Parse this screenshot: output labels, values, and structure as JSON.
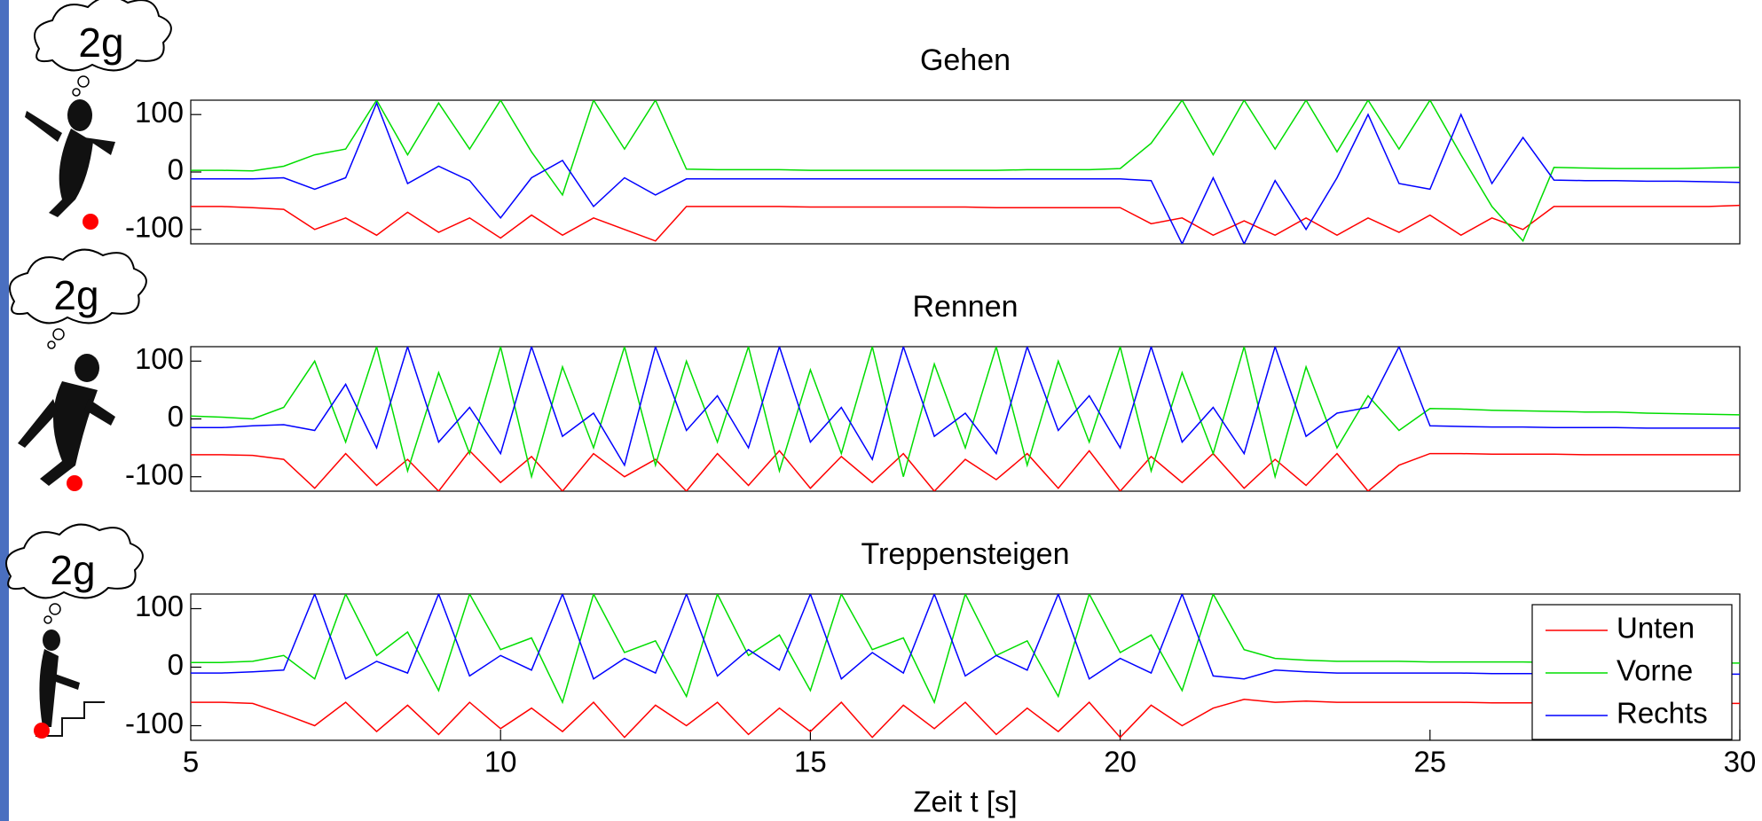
{
  "chart_data": [
    {
      "type": "line",
      "title": "Gehen",
      "annotation": "2g",
      "x": [
        5,
        5.5,
        6,
        6.5,
        7,
        7.5,
        8,
        8.5,
        9,
        9.5,
        10,
        10.5,
        11,
        11.5,
        12,
        12.5,
        13,
        13.5,
        14,
        14.5,
        15,
        15.5,
        16,
        16.5,
        17,
        17.5,
        18,
        18.5,
        19,
        19.5,
        20,
        20.5,
        21,
        21.5,
        22,
        22.5,
        23,
        23.5,
        24,
        24.5,
        25,
        25.5,
        26,
        26.5,
        27,
        27.5,
        28,
        28.5,
        29,
        29.5,
        30
      ],
      "xlim": [
        5,
        30
      ],
      "ylim": [
        -125,
        125
      ],
      "yticks": [
        -100,
        0,
        100
      ],
      "series": [
        {
          "color": "#ff0000",
          "values": [
            -60,
            -60,
            -62,
            -65,
            -100,
            -80,
            -110,
            -70,
            -105,
            -80,
            -115,
            -75,
            -110,
            -80,
            -100,
            -120,
            -60,
            -60,
            -60,
            -60,
            -61,
            -61,
            -61,
            -61,
            -61,
            -61,
            -62,
            -62,
            -62,
            -62,
            -62,
            -90,
            -80,
            -110,
            -85,
            -110,
            -80,
            -110,
            -80,
            -105,
            -75,
            -110,
            -80,
            -100,
            -60,
            -60,
            -60,
            -60,
            -60,
            -60,
            -58
          ]
        },
        {
          "color": "#00dd00",
          "values": [
            3,
            3,
            2,
            10,
            30,
            40,
            125,
            30,
            120,
            40,
            125,
            35,
            -40,
            125,
            40,
            125,
            5,
            4,
            4,
            4,
            3,
            3,
            3,
            3,
            3,
            3,
            3,
            4,
            4,
            4,
            6,
            50,
            125,
            30,
            125,
            40,
            125,
            35,
            125,
            40,
            125,
            30,
            -60,
            -120,
            8,
            7,
            6,
            6,
            6,
            7,
            8
          ]
        },
        {
          "color": "#0000ff",
          "values": [
            -12,
            -12,
            -12,
            -10,
            -30,
            -10,
            120,
            -20,
            10,
            -15,
            -80,
            -10,
            20,
            -60,
            -10,
            -40,
            -12,
            -12,
            -12,
            -12,
            -12,
            -12,
            -12,
            -12,
            -12,
            -12,
            -12,
            -12,
            -12,
            -12,
            -12,
            -15,
            -125,
            -10,
            -125,
            -15,
            -100,
            -10,
            100,
            -20,
            -30,
            100,
            -20,
            60,
            -14,
            -15,
            -15,
            -16,
            -16,
            -17,
            -18
          ]
        }
      ]
    },
    {
      "type": "line",
      "title": "Rennen",
      "annotation": "2g",
      "x": [
        5,
        5.5,
        6,
        6.5,
        7,
        7.5,
        8,
        8.5,
        9,
        9.5,
        10,
        10.5,
        11,
        11.5,
        12,
        12.5,
        13,
        13.5,
        14,
        14.5,
        15,
        15.5,
        16,
        16.5,
        17,
        17.5,
        18,
        18.5,
        19,
        19.5,
        20,
        20.5,
        21,
        21.5,
        22,
        22.5,
        23,
        23.5,
        24,
        24.5,
        25,
        25.5,
        26,
        26.5,
        27,
        27.5,
        28,
        28.5,
        29,
        29.5,
        30
      ],
      "xlim": [
        5,
        30
      ],
      "ylim": [
        -125,
        125
      ],
      "yticks": [
        -100,
        0,
        100
      ],
      "series": [
        {
          "color": "#ff0000",
          "values": [
            -62,
            -62,
            -63,
            -70,
            -120,
            -60,
            -115,
            -70,
            -125,
            -55,
            -110,
            -65,
            -125,
            -60,
            -100,
            -70,
            -125,
            -60,
            -115,
            -55,
            -120,
            -65,
            -110,
            -60,
            -125,
            -70,
            -105,
            -60,
            -120,
            -55,
            -125,
            -65,
            -110,
            -60,
            -120,
            -70,
            -115,
            -60,
            -125,
            -80,
            -60,
            -60,
            -61,
            -61,
            -61,
            -62,
            -62,
            -62,
            -62,
            -62,
            -62
          ]
        },
        {
          "color": "#00dd00",
          "values": [
            5,
            3,
            0,
            20,
            100,
            -40,
            125,
            -90,
            80,
            -60,
            125,
            -100,
            90,
            -50,
            125,
            -80,
            100,
            -40,
            125,
            -90,
            85,
            -60,
            125,
            -100,
            95,
            -50,
            125,
            -80,
            100,
            -40,
            125,
            -90,
            80,
            -60,
            125,
            -100,
            90,
            -50,
            40,
            -20,
            18,
            17,
            15,
            14,
            13,
            12,
            12,
            10,
            9,
            8,
            7
          ]
        },
        {
          "color": "#0000ff",
          "values": [
            -15,
            -15,
            -12,
            -10,
            -20,
            60,
            -50,
            125,
            -40,
            20,
            -60,
            125,
            -30,
            10,
            -80,
            125,
            -20,
            40,
            -50,
            125,
            -40,
            20,
            -70,
            125,
            -30,
            10,
            -60,
            125,
            -20,
            40,
            -50,
            125,
            -40,
            20,
            -60,
            125,
            -30,
            10,
            20,
            125,
            -12,
            -13,
            -14,
            -14,
            -15,
            -15,
            -15,
            -16,
            -16,
            -16,
            -16
          ]
        }
      ]
    },
    {
      "type": "line",
      "title": "Treppensteigen",
      "annotation": "2g",
      "x": [
        5,
        5.5,
        6,
        6.5,
        7,
        7.5,
        8,
        8.5,
        9,
        9.5,
        10,
        10.5,
        11,
        11.5,
        12,
        12.5,
        13,
        13.5,
        14,
        14.5,
        15,
        15.5,
        16,
        16.5,
        17,
        17.5,
        18,
        18.5,
        19,
        19.5,
        20,
        20.5,
        21,
        21.5,
        22,
        22.5,
        23,
        23.5,
        24,
        24.5,
        25,
        25.5,
        26,
        26.5,
        27,
        27.5,
        28,
        28.5,
        29,
        29.5,
        30
      ],
      "xlim": [
        5,
        30
      ],
      "ylim": [
        -125,
        125
      ],
      "yticks": [
        -100,
        0,
        100
      ],
      "xticks": [
        5,
        10,
        15,
        20,
        25,
        30
      ],
      "xlabel": "Zeit t [s]",
      "legend": "right",
      "series": [
        {
          "name": "Unten",
          "color": "#ff0000",
          "values": [
            -60,
            -60,
            -62,
            -80,
            -100,
            -60,
            -110,
            -65,
            -115,
            -60,
            -105,
            -70,
            -110,
            -60,
            -120,
            -65,
            -100,
            -60,
            -115,
            -70,
            -110,
            -60,
            -120,
            -65,
            -105,
            -60,
            -115,
            -70,
            -110,
            -60,
            -120,
            -65,
            -100,
            -70,
            -55,
            -60,
            -58,
            -60,
            -60,
            -60,
            -60,
            -60,
            -61,
            -61,
            -61,
            -62,
            -62,
            -62,
            -62,
            -62,
            -62
          ]
        },
        {
          "name": "Vorne",
          "color": "#00dd00",
          "values": [
            8,
            8,
            10,
            20,
            -20,
            125,
            20,
            60,
            -40,
            125,
            30,
            50,
            -60,
            125,
            25,
            45,
            -50,
            125,
            20,
            55,
            -40,
            125,
            30,
            50,
            -60,
            125,
            20,
            45,
            -50,
            125,
            25,
            55,
            -40,
            125,
            30,
            15,
            12,
            10,
            10,
            10,
            9,
            9,
            9,
            9,
            8,
            8,
            8,
            7,
            7,
            7,
            7
          ]
        },
        {
          "name": "Rechts",
          "color": "#0000ff",
          "values": [
            -10,
            -10,
            -8,
            -5,
            125,
            -20,
            10,
            -10,
            125,
            -15,
            20,
            -5,
            125,
            -20,
            15,
            -10,
            125,
            -15,
            30,
            -5,
            125,
            -20,
            25,
            -10,
            125,
            -15,
            20,
            -5,
            125,
            -20,
            15,
            -10,
            125,
            -15,
            -20,
            -5,
            -8,
            -10,
            -10,
            -10,
            -10,
            -10,
            -11,
            -11,
            -11,
            -12,
            -12,
            -12,
            -12,
            -12,
            -12
          ]
        }
      ]
    }
  ]
}
